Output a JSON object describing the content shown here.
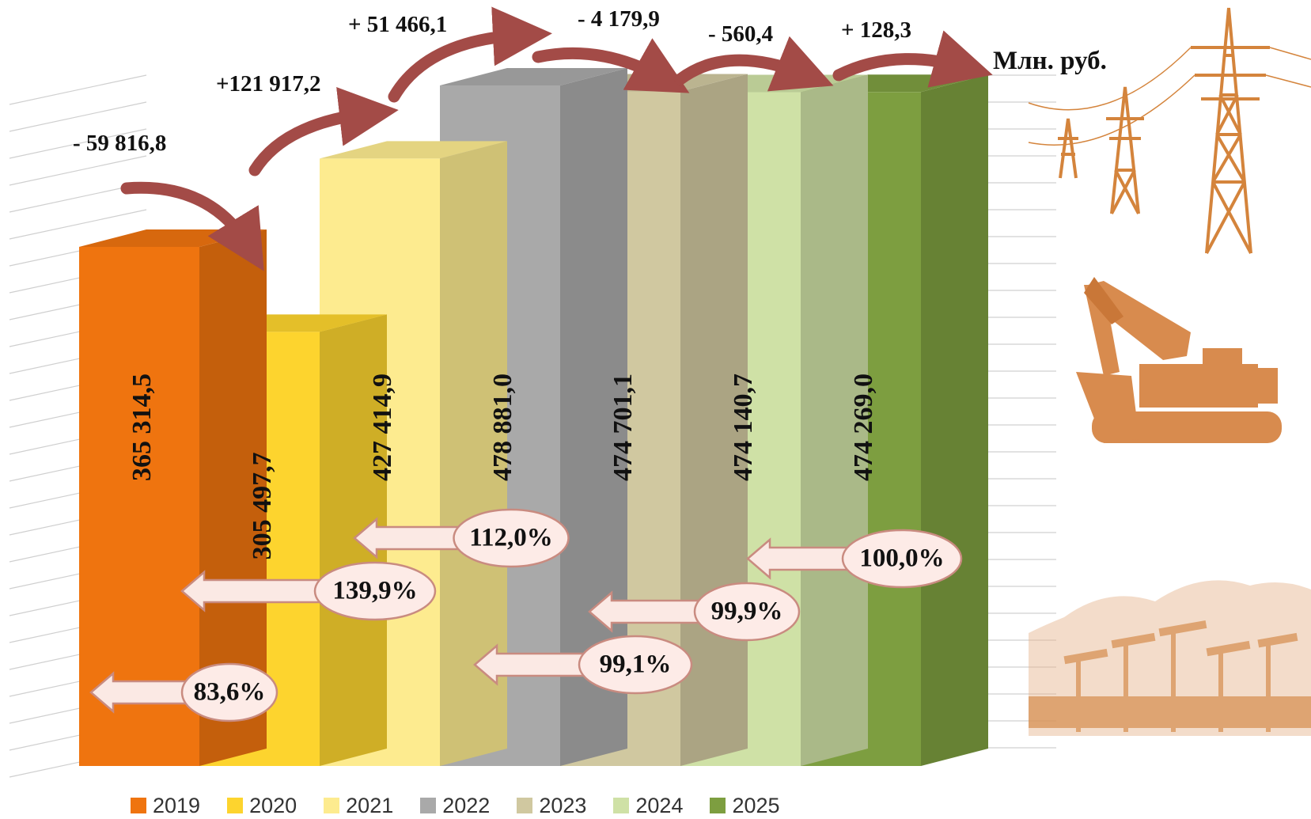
{
  "chart_data": {
    "type": "bar",
    "title": "",
    "unit_label": "Млн. руб.",
    "categories": [
      "2019",
      "2020",
      "2021",
      "2022",
      "2023",
      "2024",
      "2025"
    ],
    "values": [
      365314.5,
      305497.7,
      427414.9,
      478881.0,
      474701.1,
      474140.7,
      474269.0
    ],
    "value_labels": [
      "365 314,5",
      "305 497,7",
      "427 414,9",
      "478 881,0",
      "474 701,1",
      "474 140,7",
      "474 269,0"
    ],
    "changes": [
      "- 59 816,8",
      "+121 917,2",
      "+ 51 466,1",
      "- 4 179,9",
      "- 560,4",
      "+  128,3"
    ],
    "growth_percent_labels": [
      "83,6%",
      "139,9%",
      "112,0%",
      "99,1%",
      "99,9%",
      "100,0%"
    ],
    "colors": [
      "#ef740f",
      "#fdd42e",
      "#fdeb8f",
      "#a9a9a9",
      "#d0c8a0",
      "#cfe1a6",
      "#7d9e40"
    ],
    "grid": true,
    "legend": "bottom"
  }
}
